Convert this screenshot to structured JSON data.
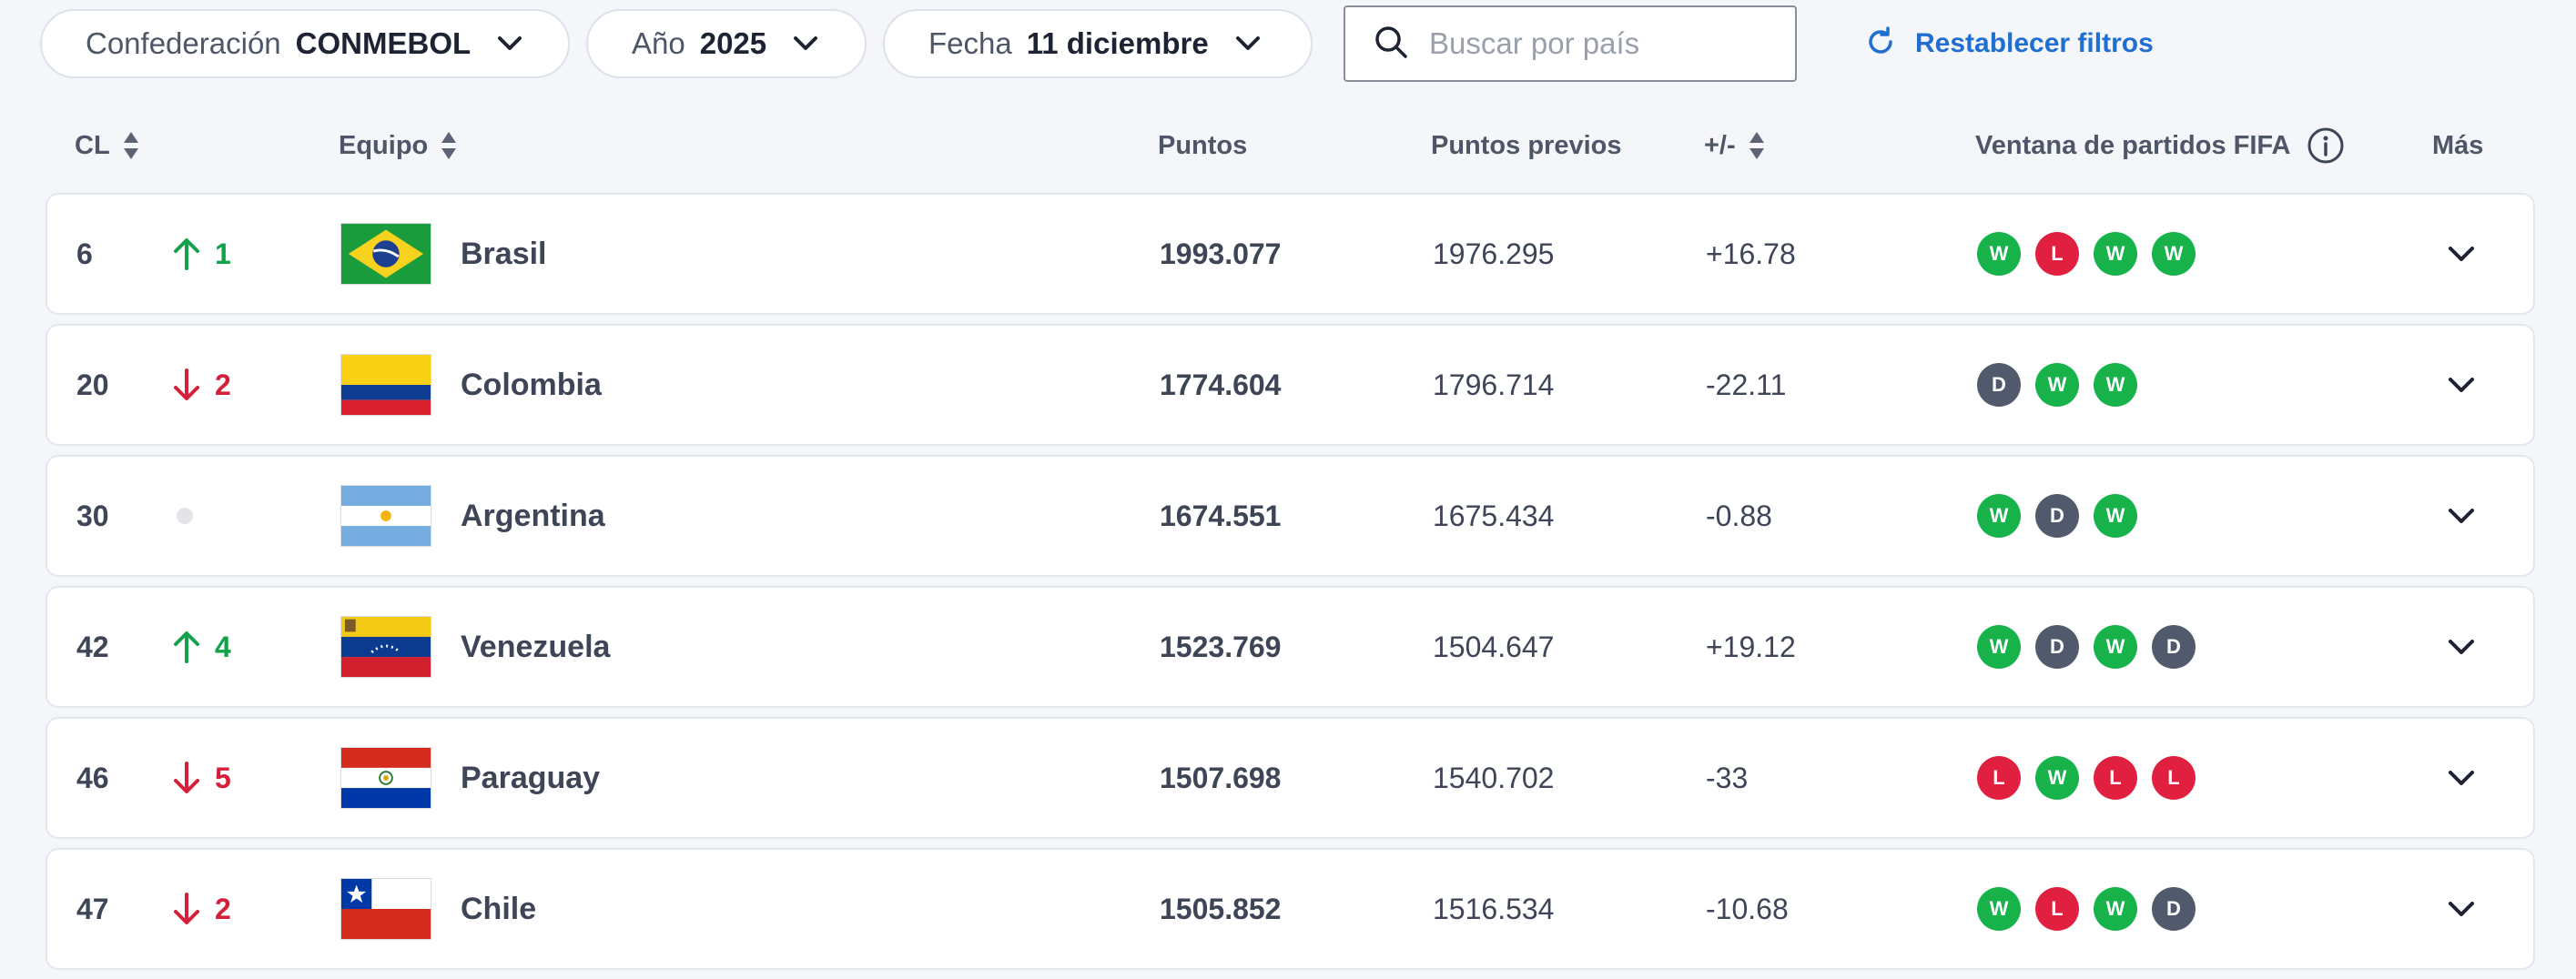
{
  "filters": {
    "confederation": {
      "label": "Confederación",
      "value": "CONMEBOL"
    },
    "year": {
      "label": "Año",
      "value": "2025"
    },
    "date": {
      "label": "Fecha",
      "value": "11 diciembre"
    },
    "search_placeholder": "Buscar por país",
    "reset_label": "Restablecer filtros"
  },
  "columns": {
    "rank": "CL",
    "team": "Equipo",
    "points": "Puntos",
    "previous_points": "Puntos previos",
    "change": "+/-",
    "match_window": "Ventana de partidos FIFA",
    "more": "Más"
  },
  "colors": {
    "win": "#17b24a",
    "loss": "#e0203e",
    "draw": "#515a6d",
    "up": "#12a34a",
    "down": "#d5203a",
    "accent": "#1f6fd2"
  },
  "rows": [
    {
      "rank": "6",
      "movement": "up",
      "movement_value": "1",
      "team": "Brasil",
      "flag": "brazil",
      "points": "1993.077",
      "previous_points": "1976.295",
      "change": "+16.78",
      "results": [
        "W",
        "L",
        "W",
        "W"
      ]
    },
    {
      "rank": "20",
      "movement": "down",
      "movement_value": "2",
      "team": "Colombia",
      "flag": "colombia",
      "points": "1774.604",
      "previous_points": "1796.714",
      "change": "-22.11",
      "results": [
        "D",
        "W",
        "W"
      ]
    },
    {
      "rank": "30",
      "movement": "none",
      "movement_value": "",
      "team": "Argentina",
      "flag": "argentina",
      "points": "1674.551",
      "previous_points": "1675.434",
      "change": "-0.88",
      "results": [
        "W",
        "D",
        "W"
      ]
    },
    {
      "rank": "42",
      "movement": "up",
      "movement_value": "4",
      "team": "Venezuela",
      "flag": "venezuela",
      "points": "1523.769",
      "previous_points": "1504.647",
      "change": "+19.12",
      "results": [
        "W",
        "D",
        "W",
        "D"
      ]
    },
    {
      "rank": "46",
      "movement": "down",
      "movement_value": "5",
      "team": "Paraguay",
      "flag": "paraguay",
      "points": "1507.698",
      "previous_points": "1540.702",
      "change": "-33",
      "results": [
        "L",
        "W",
        "L",
        "L"
      ]
    },
    {
      "rank": "47",
      "movement": "down",
      "movement_value": "2",
      "team": "Chile",
      "flag": "chile",
      "points": "1505.852",
      "previous_points": "1516.534",
      "change": "-10.68",
      "results": [
        "W",
        "L",
        "W",
        "D"
      ]
    }
  ]
}
